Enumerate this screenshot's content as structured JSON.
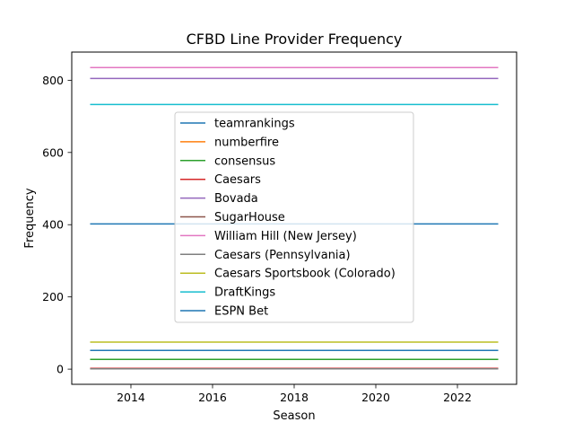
{
  "chart_data": {
    "type": "line",
    "title": "CFBD Line Provider Frequency",
    "xlabel": "Season",
    "ylabel": "Frequency",
    "xlim": [
      2012.55,
      2023.45
    ],
    "ylim": [
      -42,
      878
    ],
    "xticks": [
      2014,
      2016,
      2018,
      2020,
      2022
    ],
    "yticks": [
      0,
      200,
      400,
      600,
      800
    ],
    "legend_position": "center",
    "grid": false,
    "x": [
      2013,
      2023
    ],
    "series": [
      {
        "name": "teamrankings",
        "color": "#1f77b4",
        "values": [
          52,
          52
        ]
      },
      {
        "name": "numberfire",
        "color": "#ff7f0e",
        "values": [
          1,
          1
        ]
      },
      {
        "name": "consensus",
        "color": "#2ca02c",
        "values": [
          27,
          27
        ]
      },
      {
        "name": "Caesars",
        "color": "#d62728",
        "values": [
          2,
          2
        ]
      },
      {
        "name": "Bovada",
        "color": "#9467bd",
        "values": [
          805,
          805
        ]
      },
      {
        "name": "SugarHouse",
        "color": "#8c564b",
        "values": [
          1,
          1
        ]
      },
      {
        "name": "William Hill (New Jersey)",
        "color": "#e377c2",
        "values": [
          835,
          835
        ]
      },
      {
        "name": "Caesars (Pennsylvania)",
        "color": "#7f7f7f",
        "values": [
          1,
          1
        ]
      },
      {
        "name": "Caesars Sportsbook (Colorado)",
        "color": "#bcbd22",
        "values": [
          75,
          75
        ]
      },
      {
        "name": "DraftKings",
        "color": "#17becf",
        "values": [
          733,
          733
        ]
      },
      {
        "name": "ESPN Bet",
        "color": "#1f77b4",
        "values": [
          402,
          402
        ]
      }
    ]
  }
}
